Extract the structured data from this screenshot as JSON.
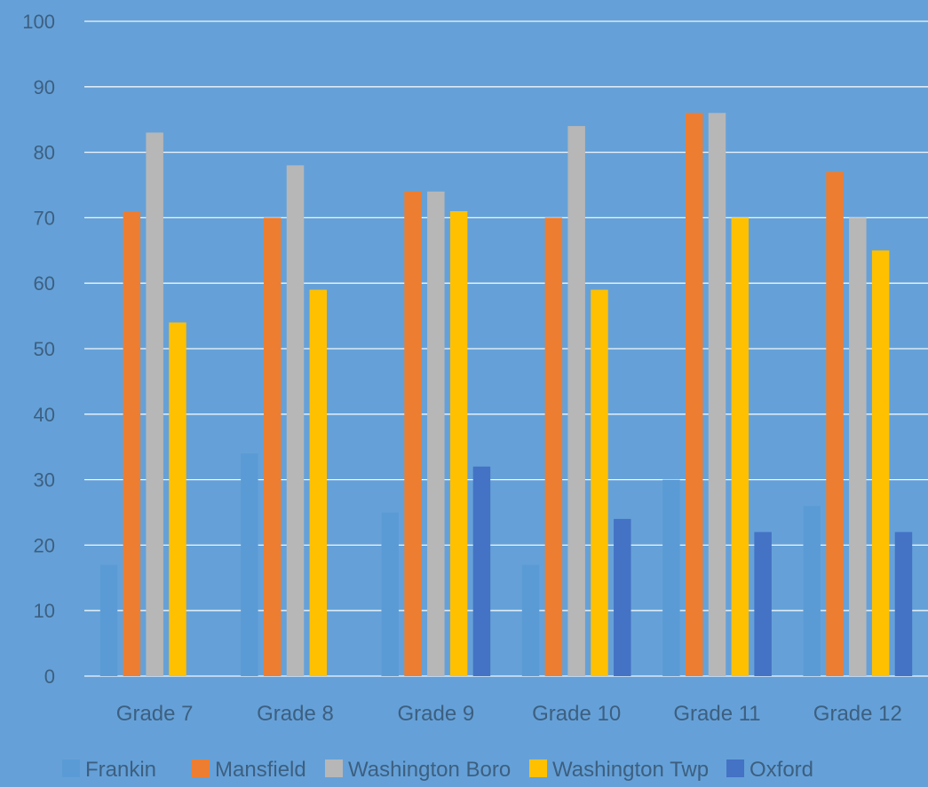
{
  "chart_data": {
    "type": "bar",
    "categories": [
      "Grade 7",
      "Grade 8",
      "Grade 9",
      "Grade 10",
      "Grade 11",
      "Grade 12"
    ],
    "series": [
      {
        "name": "Frankin",
        "color": "#5b9bd5",
        "values": [
          17,
          34,
          25,
          17,
          30,
          26
        ]
      },
      {
        "name": "Mansfield",
        "color": "#ed7d31",
        "values": [
          71,
          70,
          74,
          70,
          86,
          77
        ]
      },
      {
        "name": "Washington Boro",
        "color": "#b7b7b7",
        "values": [
          83,
          78,
          74,
          84,
          86,
          70
        ]
      },
      {
        "name": "Washington Twp",
        "color": "#ffc000",
        "values": [
          54,
          59,
          71,
          59,
          70,
          65
        ]
      },
      {
        "name": "Oxford",
        "color": "#4472c4",
        "values": [
          null,
          null,
          32,
          24,
          22,
          22
        ]
      }
    ],
    "yticks": [
      "0",
      "10",
      "20",
      "30",
      "40",
      "50",
      "60",
      "70",
      "80",
      "90",
      "100"
    ],
    "ylim": [
      0,
      100
    ],
    "grid": true,
    "legend_position": "bottom",
    "title": "",
    "xlabel": "",
    "ylabel": ""
  },
  "colors": {
    "background": "#65a1d8",
    "gridline": "#ffffff",
    "text": "#3d5f80"
  }
}
